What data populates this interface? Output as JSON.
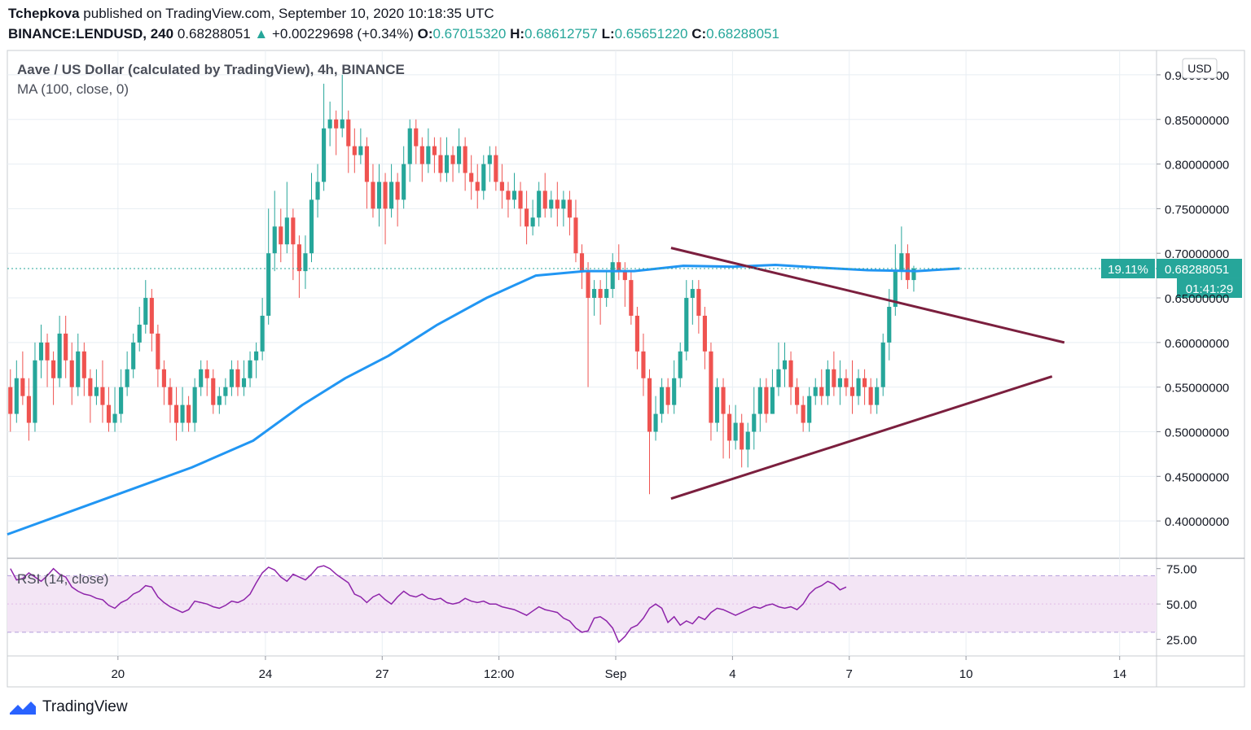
{
  "header": {
    "author": "Tchepkova",
    "published_text": "published on TradingView.com, September 10, 2020 10:18:35 UTC",
    "symbol": "BINANCE:LENDUSD, 240",
    "last": "0.68288051",
    "change": "+0.00229698 (+0.34%)",
    "o_label": "O:",
    "o": "0.67015320",
    "h_label": "H:",
    "h": "0.68612757",
    "l_label": "L:",
    "l": "0.65651220",
    "c_label": "C:",
    "c": "0.68288051"
  },
  "footer": {
    "brand": "TradingView"
  },
  "colors": {
    "up": "#26a69a",
    "down": "#ef5350",
    "ma": "#2196f3",
    "trend": "#7b1f3e",
    "rsi": "#8e24aa",
    "rsi_band": "#f3e5f5",
    "grid": "#e8eef3"
  },
  "chart_data": [
    {
      "type": "candlestick",
      "title": "Aave / US Dollar (calculated by TradingView), 4h, BINANCE",
      "indicator_label": "MA (100, close, 0)",
      "currency": "USD",
      "ylim": [
        0.36,
        0.92
      ],
      "yticks": [
        0.4,
        0.45,
        0.5,
        0.55,
        0.6,
        0.65,
        0.7,
        0.75,
        0.8,
        0.85,
        0.9
      ],
      "ytick_labels": [
        "0.40000000",
        "0.45000000",
        "0.50000000",
        "0.55000000",
        "0.60000000",
        "0.65000000",
        "0.70000000",
        "0.75000000",
        "0.80000000",
        "0.85000000",
        "0.90000000"
      ],
      "xlim": [
        0,
        187
      ],
      "xticks": [
        {
          "x": 18,
          "label": "20"
        },
        {
          "x": 42,
          "label": "24"
        },
        {
          "x": 61,
          "label": "27"
        },
        {
          "x": 80,
          "label": "12:00"
        },
        {
          "x": 99,
          "label": "Sep"
        },
        {
          "x": 118,
          "label": "4"
        },
        {
          "x": 137,
          "label": "7"
        },
        {
          "x": 156,
          "label": "10"
        },
        {
          "x": 181,
          "label": "14"
        }
      ],
      "last_price": 0.68288051,
      "last_price_label": "0.68288051",
      "change_badge": "19.11%",
      "countdown": "01:41:29",
      "candles": [
        [
          0.55,
          0.52,
          0.57,
          0.5
        ],
        [
          0.52,
          0.56,
          0.58,
          0.51
        ],
        [
          0.56,
          0.54,
          0.59,
          0.53
        ],
        [
          0.54,
          0.51,
          0.56,
          0.49
        ],
        [
          0.51,
          0.58,
          0.6,
          0.5
        ],
        [
          0.58,
          0.6,
          0.62,
          0.56
        ],
        [
          0.6,
          0.58,
          0.61,
          0.55
        ],
        [
          0.58,
          0.56,
          0.59,
          0.53
        ],
        [
          0.56,
          0.61,
          0.63,
          0.55
        ],
        [
          0.61,
          0.58,
          0.63,
          0.56
        ],
        [
          0.58,
          0.55,
          0.6,
          0.53
        ],
        [
          0.55,
          0.59,
          0.61,
          0.54
        ],
        [
          0.59,
          0.56,
          0.6,
          0.54
        ],
        [
          0.56,
          0.54,
          0.57,
          0.51
        ],
        [
          0.54,
          0.55,
          0.57,
          0.53
        ],
        [
          0.55,
          0.53,
          0.58,
          0.51
        ],
        [
          0.53,
          0.51,
          0.55,
          0.5
        ],
        [
          0.51,
          0.52,
          0.55,
          0.5
        ],
        [
          0.52,
          0.55,
          0.57,
          0.51
        ],
        [
          0.55,
          0.57,
          0.59,
          0.54
        ],
        [
          0.57,
          0.6,
          0.61,
          0.56
        ],
        [
          0.6,
          0.62,
          0.64,
          0.59
        ],
        [
          0.62,
          0.65,
          0.67,
          0.61
        ],
        [
          0.65,
          0.61,
          0.66,
          0.59
        ],
        [
          0.61,
          0.57,
          0.62,
          0.55
        ],
        [
          0.57,
          0.55,
          0.58,
          0.53
        ],
        [
          0.55,
          0.53,
          0.56,
          0.51
        ],
        [
          0.53,
          0.51,
          0.55,
          0.49
        ],
        [
          0.51,
          0.53,
          0.55,
          0.5
        ],
        [
          0.53,
          0.51,
          0.54,
          0.5
        ],
        [
          0.51,
          0.55,
          0.56,
          0.5
        ],
        [
          0.55,
          0.57,
          0.58,
          0.54
        ],
        [
          0.57,
          0.56,
          0.58,
          0.54
        ],
        [
          0.56,
          0.53,
          0.57,
          0.52
        ],
        [
          0.53,
          0.54,
          0.55,
          0.52
        ],
        [
          0.54,
          0.55,
          0.56,
          0.53
        ],
        [
          0.55,
          0.57,
          0.58,
          0.54
        ],
        [
          0.57,
          0.55,
          0.58,
          0.54
        ],
        [
          0.55,
          0.56,
          0.58,
          0.54
        ],
        [
          0.56,
          0.58,
          0.59,
          0.55
        ],
        [
          0.58,
          0.59,
          0.6,
          0.56
        ],
        [
          0.59,
          0.63,
          0.65,
          0.58
        ],
        [
          0.63,
          0.7,
          0.75,
          0.62
        ],
        [
          0.7,
          0.73,
          0.77,
          0.68
        ],
        [
          0.73,
          0.71,
          0.75,
          0.69
        ],
        [
          0.71,
          0.74,
          0.78,
          0.7
        ],
        [
          0.74,
          0.71,
          0.75,
          0.67
        ],
        [
          0.71,
          0.68,
          0.72,
          0.65
        ],
        [
          0.68,
          0.7,
          0.72,
          0.66
        ],
        [
          0.7,
          0.76,
          0.79,
          0.69
        ],
        [
          0.76,
          0.78,
          0.8,
          0.74
        ],
        [
          0.78,
          0.84,
          0.89,
          0.77
        ],
        [
          0.84,
          0.85,
          0.87,
          0.82
        ],
        [
          0.85,
          0.84,
          0.86,
          0.81
        ],
        [
          0.84,
          0.85,
          0.9,
          0.83
        ],
        [
          0.85,
          0.82,
          0.86,
          0.79
        ],
        [
          0.82,
          0.81,
          0.84,
          0.79
        ],
        [
          0.81,
          0.82,
          0.84,
          0.8
        ],
        [
          0.82,
          0.78,
          0.83,
          0.75
        ],
        [
          0.78,
          0.75,
          0.8,
          0.74
        ],
        [
          0.75,
          0.78,
          0.8,
          0.73
        ],
        [
          0.78,
          0.75,
          0.79,
          0.71
        ],
        [
          0.75,
          0.78,
          0.8,
          0.74
        ],
        [
          0.78,
          0.76,
          0.79,
          0.73
        ],
        [
          0.76,
          0.8,
          0.82,
          0.75
        ],
        [
          0.8,
          0.84,
          0.85,
          0.78
        ],
        [
          0.84,
          0.82,
          0.85,
          0.8
        ],
        [
          0.82,
          0.8,
          0.83,
          0.78
        ],
        [
          0.8,
          0.82,
          0.84,
          0.79
        ],
        [
          0.82,
          0.81,
          0.83,
          0.79
        ],
        [
          0.81,
          0.79,
          0.83,
          0.78
        ],
        [
          0.79,
          0.81,
          0.83,
          0.78
        ],
        [
          0.81,
          0.8,
          0.82,
          0.78
        ],
        [
          0.8,
          0.82,
          0.84,
          0.79
        ],
        [
          0.82,
          0.79,
          0.83,
          0.77
        ],
        [
          0.79,
          0.78,
          0.81,
          0.76
        ],
        [
          0.78,
          0.77,
          0.8,
          0.75
        ],
        [
          0.77,
          0.8,
          0.81,
          0.76
        ],
        [
          0.8,
          0.81,
          0.82,
          0.78
        ],
        [
          0.81,
          0.78,
          0.82,
          0.77
        ],
        [
          0.78,
          0.77,
          0.8,
          0.75
        ],
        [
          0.77,
          0.76,
          0.78,
          0.74
        ],
        [
          0.76,
          0.77,
          0.79,
          0.75
        ],
        [
          0.77,
          0.75,
          0.78,
          0.73
        ],
        [
          0.75,
          0.73,
          0.77,
          0.71
        ],
        [
          0.73,
          0.74,
          0.76,
          0.72
        ],
        [
          0.74,
          0.77,
          0.78,
          0.73
        ],
        [
          0.77,
          0.75,
          0.79,
          0.74
        ],
        [
          0.75,
          0.76,
          0.77,
          0.74
        ],
        [
          0.76,
          0.75,
          0.78,
          0.73
        ],
        [
          0.75,
          0.76,
          0.77,
          0.73
        ],
        [
          0.76,
          0.74,
          0.77,
          0.72
        ],
        [
          0.74,
          0.7,
          0.76,
          0.69
        ],
        [
          0.7,
          0.68,
          0.71,
          0.66
        ],
        [
          0.68,
          0.65,
          0.69,
          0.55
        ],
        [
          0.65,
          0.66,
          0.67,
          0.63
        ],
        [
          0.66,
          0.65,
          0.67,
          0.62
        ],
        [
          0.65,
          0.66,
          0.68,
          0.64
        ],
        [
          0.66,
          0.69,
          0.7,
          0.65
        ],
        [
          0.69,
          0.68,
          0.71,
          0.67
        ],
        [
          0.68,
          0.67,
          0.69,
          0.64
        ],
        [
          0.67,
          0.63,
          0.68,
          0.62
        ],
        [
          0.63,
          0.59,
          0.64,
          0.57
        ],
        [
          0.59,
          0.56,
          0.61,
          0.54
        ],
        [
          0.56,
          0.5,
          0.57,
          0.43
        ],
        [
          0.5,
          0.52,
          0.54,
          0.49
        ],
        [
          0.52,
          0.55,
          0.56,
          0.51
        ],
        [
          0.55,
          0.53,
          0.56,
          0.52
        ],
        [
          0.53,
          0.56,
          0.58,
          0.52
        ],
        [
          0.56,
          0.59,
          0.6,
          0.55
        ],
        [
          0.59,
          0.65,
          0.67,
          0.58
        ],
        [
          0.65,
          0.66,
          0.67,
          0.62
        ],
        [
          0.66,
          0.63,
          0.67,
          0.61
        ],
        [
          0.63,
          0.59,
          0.64,
          0.57
        ],
        [
          0.59,
          0.51,
          0.6,
          0.49
        ],
        [
          0.51,
          0.55,
          0.56,
          0.5
        ],
        [
          0.55,
          0.52,
          0.56,
          0.47
        ],
        [
          0.52,
          0.49,
          0.53,
          0.47
        ],
        [
          0.49,
          0.51,
          0.53,
          0.48
        ],
        [
          0.51,
          0.48,
          0.52,
          0.46
        ],
        [
          0.48,
          0.5,
          0.51,
          0.46
        ],
        [
          0.5,
          0.52,
          0.55,
          0.48
        ],
        [
          0.52,
          0.55,
          0.56,
          0.5
        ],
        [
          0.55,
          0.52,
          0.56,
          0.51
        ],
        [
          0.52,
          0.55,
          0.57,
          0.52
        ],
        [
          0.55,
          0.57,
          0.6,
          0.54
        ],
        [
          0.57,
          0.58,
          0.6,
          0.55
        ],
        [
          0.58,
          0.55,
          0.59,
          0.53
        ],
        [
          0.55,
          0.53,
          0.56,
          0.52
        ],
        [
          0.53,
          0.51,
          0.54,
          0.5
        ],
        [
          0.51,
          0.54,
          0.55,
          0.5
        ],
        [
          0.54,
          0.55,
          0.56,
          0.53
        ],
        [
          0.55,
          0.54,
          0.57,
          0.53
        ],
        [
          0.54,
          0.57,
          0.58,
          0.53
        ],
        [
          0.57,
          0.55,
          0.59,
          0.54
        ],
        [
          0.55,
          0.56,
          0.58,
          0.53
        ],
        [
          0.56,
          0.55,
          0.57,
          0.54
        ],
        [
          0.55,
          0.54,
          0.58,
          0.52
        ],
        [
          0.54,
          0.56,
          0.57,
          0.53
        ],
        [
          0.56,
          0.55,
          0.57,
          0.53
        ],
        [
          0.55,
          0.53,
          0.56,
          0.52
        ],
        [
          0.53,
          0.55,
          0.56,
          0.52
        ],
        [
          0.55,
          0.6,
          0.61,
          0.54
        ],
        [
          0.6,
          0.64,
          0.66,
          0.58
        ],
        [
          0.64,
          0.68,
          0.71,
          0.63
        ],
        [
          0.68,
          0.7,
          0.73,
          0.67
        ],
        [
          0.7,
          0.67,
          0.71,
          0.66
        ],
        [
          0.67,
          0.683,
          0.686,
          0.657
        ]
      ],
      "ma_series": [
        [
          0,
          0.385
        ],
        [
          10,
          0.41
        ],
        [
          20,
          0.435
        ],
        [
          30,
          0.46
        ],
        [
          40,
          0.49
        ],
        [
          48,
          0.53
        ],
        [
          55,
          0.56
        ],
        [
          62,
          0.585
        ],
        [
          70,
          0.62
        ],
        [
          78,
          0.65
        ],
        [
          86,
          0.675
        ],
        [
          94,
          0.68
        ],
        [
          102,
          0.68
        ],
        [
          110,
          0.686
        ],
        [
          118,
          0.685
        ],
        [
          125,
          0.687
        ],
        [
          132,
          0.684
        ],
        [
          140,
          0.681
        ],
        [
          148,
          0.68
        ],
        [
          155,
          0.683
        ]
      ],
      "trendlines": [
        {
          "name": "upper",
          "from": [
            108,
            0.706
          ],
          "to": [
            172,
            0.6
          ]
        },
        {
          "name": "lower",
          "from": [
            108,
            0.425
          ],
          "to": [
            170,
            0.562
          ]
        }
      ]
    },
    {
      "type": "line",
      "title": "RSI (14, close)",
      "ylim": [
        15,
        80
      ],
      "band": [
        30,
        70
      ],
      "yticks": [
        25,
        50,
        75
      ],
      "ytick_labels": [
        "25.00",
        "50.00",
        "75.00"
      ],
      "values": [
        75,
        67,
        68,
        72,
        69,
        66,
        70,
        75,
        71,
        69,
        62,
        59,
        57,
        56,
        54,
        53,
        49,
        47,
        51,
        53,
        57,
        59,
        63,
        62,
        55,
        51,
        48,
        46,
        44,
        46,
        52,
        51,
        50,
        48,
        47,
        49,
        52,
        51,
        53,
        57,
        65,
        72,
        76,
        74,
        69,
        66,
        71,
        69,
        67,
        71,
        76,
        77,
        75,
        71,
        68,
        65,
        57,
        55,
        51,
        55,
        57,
        53,
        50,
        55,
        59,
        56,
        55,
        57,
        54,
        53,
        54,
        51,
        50,
        51,
        54,
        52,
        51,
        52,
        50,
        50,
        48,
        47,
        46,
        44,
        42,
        45,
        48,
        46,
        45,
        44,
        40,
        38,
        33,
        30,
        31,
        40,
        41,
        38,
        33,
        23,
        27,
        33,
        35,
        40,
        47,
        50,
        47,
        37,
        41,
        35,
        38,
        36,
        41,
        39,
        44,
        47,
        46,
        44,
        42,
        44,
        46,
        48,
        47,
        49,
        50,
        48,
        47,
        48,
        46,
        50,
        57,
        61,
        63,
        66,
        64,
        60,
        62
      ]
    }
  ]
}
